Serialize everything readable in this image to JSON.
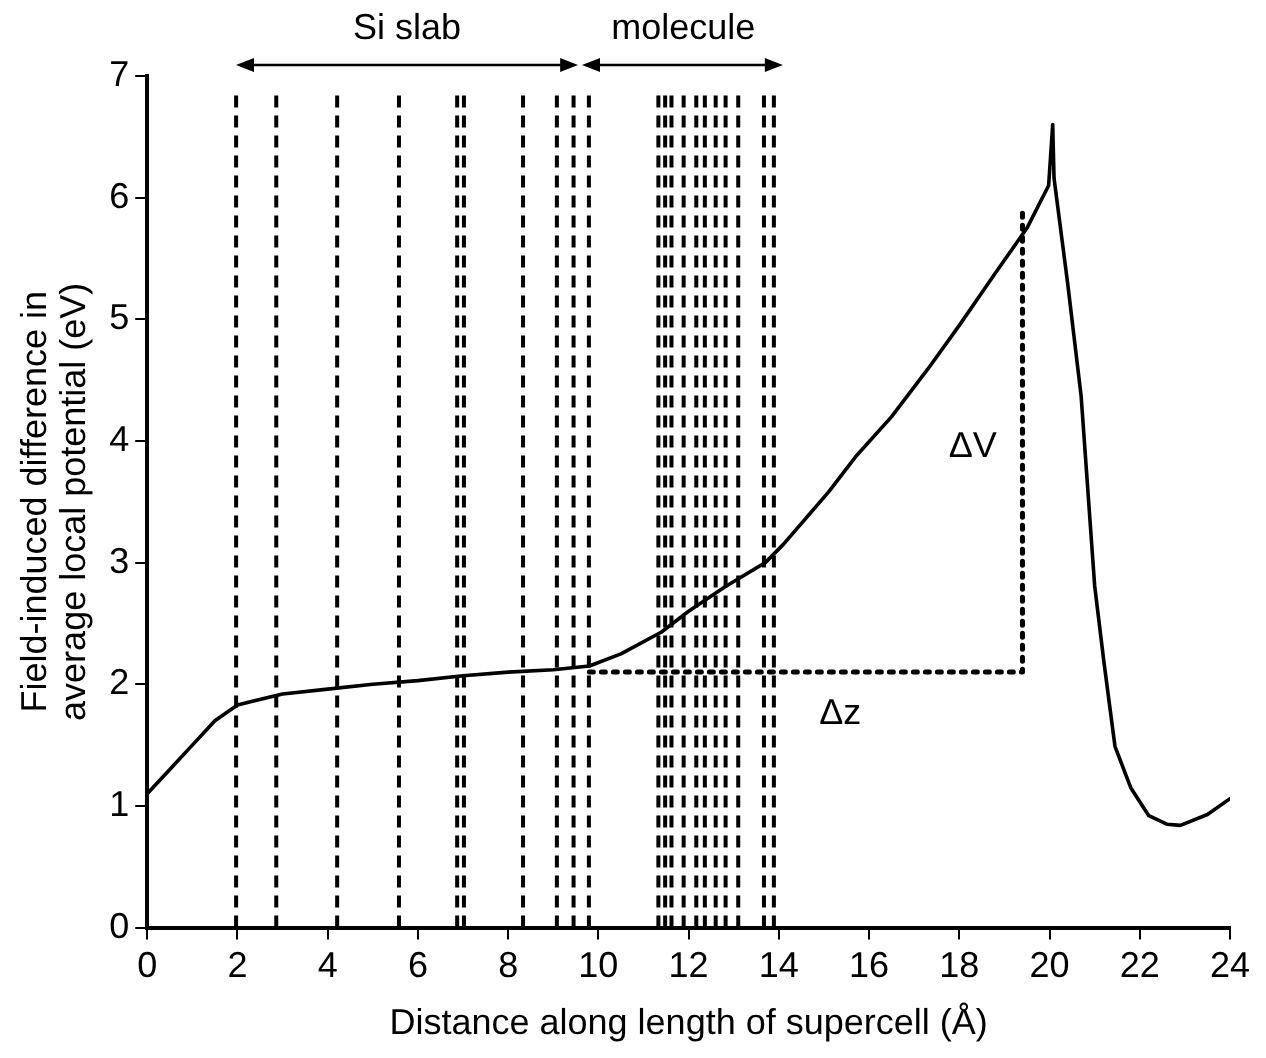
{
  "chart_data": {
    "type": "line",
    "xlabel": "Distance along length of supercell (Å)",
    "ylabel": "Field-induced difference in\naverage local potential (eV)",
    "xlim": [
      0,
      24
    ],
    "xticks": [
      0,
      2,
      4,
      6,
      8,
      10,
      12,
      14,
      16,
      18,
      20,
      22,
      24
    ],
    "ylim": [
      0,
      7
    ],
    "yticks": [
      0,
      1,
      2,
      3,
      4,
      5,
      6,
      7
    ],
    "grid": false,
    "legend": false,
    "marker": "none",
    "series": [
      {
        "color": "#000000",
        "line_style": "solid",
        "x": [
          0,
          0.5,
          1,
          1.5,
          2,
          3,
          4,
          5,
          6,
          7,
          8,
          9,
          9.8,
          10.5,
          11.4,
          12,
          12.8,
          13.7,
          14.1,
          15.1,
          15.7,
          16.5,
          17.3,
          18,
          18.8,
          19.5,
          19.98,
          20.07,
          20.1,
          20.4,
          20.7,
          21,
          21.2,
          21.45,
          21.8,
          22.2,
          22.6,
          22.9,
          23.5,
          24
        ],
        "values": [
          1.1,
          1.3,
          1.5,
          1.7,
          1.83,
          1.92,
          1.96,
          2.0,
          2.03,
          2.07,
          2.1,
          2.12,
          2.15,
          2.25,
          2.43,
          2.6,
          2.8,
          3.0,
          3.15,
          3.58,
          3.87,
          4.2,
          4.59,
          4.95,
          5.38,
          5.75,
          6.1,
          6.6,
          6.16,
          5.3,
          4.37,
          2.81,
          2.2,
          1.49,
          1.15,
          0.92,
          0.85,
          0.84,
          0.93,
          1.06
        ]
      },
      {
        "color": "#000000",
        "line_style": "dotted",
        "x": [
          9.8,
          19.4,
          19.4
        ],
        "values": [
          2.1,
          2.1,
          5.9
        ]
      }
    ],
    "ref_lines": [
      {
        "axis": "x",
        "value": 1.97
      },
      {
        "axis": "x",
        "value": 2.86
      },
      {
        "axis": "x",
        "value": 4.21
      },
      {
        "axis": "x",
        "value": 5.58
      },
      {
        "axis": "x",
        "value": 6.87
      },
      {
        "axis": "x",
        "value": 7.02
      },
      {
        "axis": "x",
        "value": 8.33
      },
      {
        "axis": "x",
        "value": 9.08
      },
      {
        "axis": "x",
        "value": 9.45
      },
      {
        "axis": "x",
        "value": 9.79
      },
      {
        "axis": "x",
        "value": 11.33
      },
      {
        "axis": "x",
        "value": 11.48
      },
      {
        "axis": "x",
        "value": 11.62
      },
      {
        "axis": "x",
        "value": 11.89
      },
      {
        "axis": "x",
        "value": 12.17
      },
      {
        "axis": "x",
        "value": 12.36
      },
      {
        "axis": "x",
        "value": 12.6
      },
      {
        "axis": "x",
        "value": 12.82
      },
      {
        "axis": "x",
        "value": 13.1
      },
      {
        "axis": "x",
        "value": 13.67
      },
      {
        "axis": "x",
        "value": 13.89
      }
    ],
    "annotations": [
      "Si slab",
      "molecule",
      "ΔV",
      "Δz"
    ]
  }
}
